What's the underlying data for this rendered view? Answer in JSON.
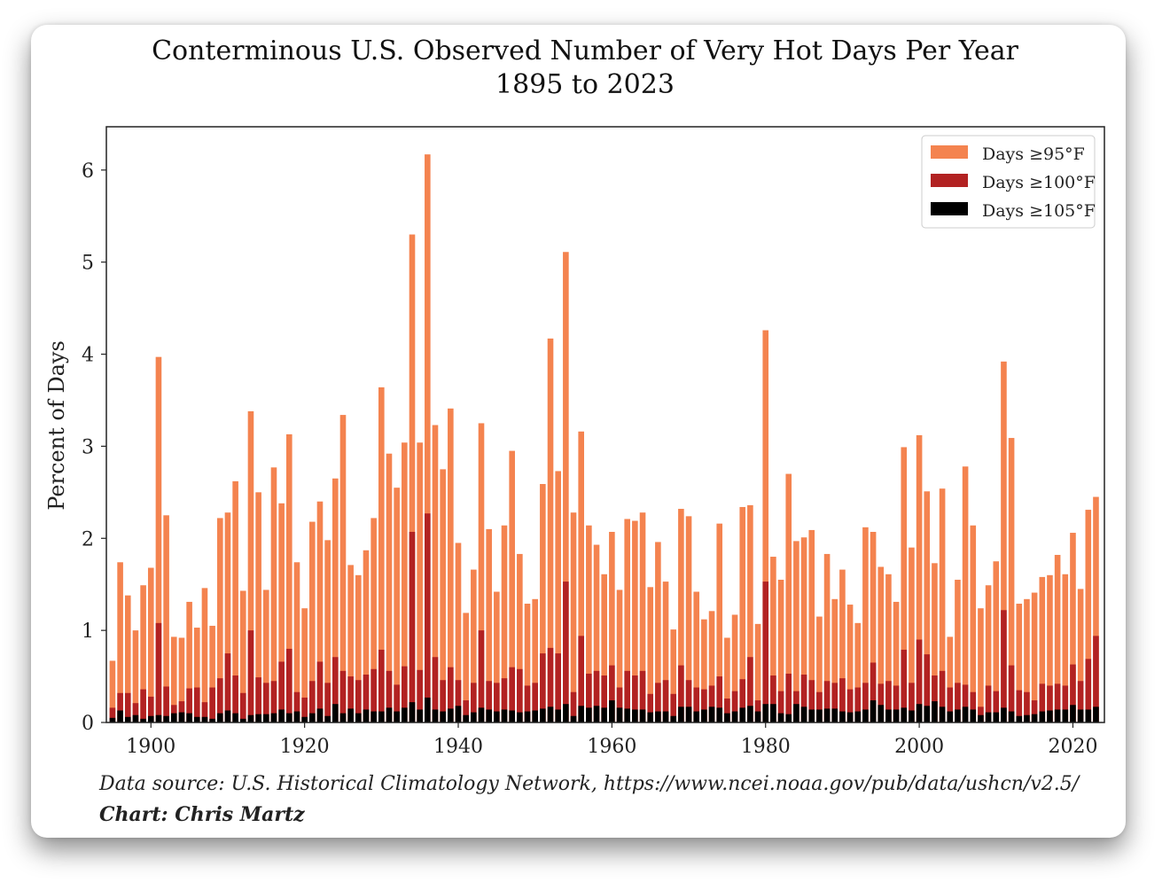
{
  "chart_data": {
    "type": "bar",
    "title": "Conterminous U.S. Observed Number of Very Hot Days Per Year",
    "subtitle": "1895 to 2023",
    "ylabel": "Percent of Days",
    "xlabel": "",
    "xlim": [
      1894.2,
      2024.1
    ],
    "ylim": [
      0,
      6.47
    ],
    "xticks": [
      1900,
      1920,
      1940,
      1960,
      1980,
      2000,
      2020
    ],
    "yticks": [
      0,
      1,
      2,
      3,
      4,
      5,
      6
    ],
    "grid": false,
    "legend_placement": "top-right",
    "x_start": 1895,
    "x_end": 2023,
    "series": [
      {
        "name": "Days ≥95°F",
        "color": "#f4834f",
        "values": [
          0.67,
          1.74,
          1.38,
          1.0,
          1.49,
          1.68,
          3.97,
          2.25,
          0.93,
          0.92,
          1.31,
          1.03,
          1.46,
          1.05,
          2.22,
          2.28,
          2.62,
          1.43,
          3.38,
          2.5,
          1.44,
          2.77,
          2.38,
          3.13,
          1.74,
          1.24,
          2.18,
          2.4,
          1.98,
          2.65,
          3.34,
          1.71,
          1.6,
          1.87,
          2.22,
          3.64,
          2.92,
          2.55,
          3.04,
          5.3,
          3.04,
          6.17,
          3.23,
          2.75,
          3.41,
          1.95,
          1.19,
          1.66,
          3.25,
          2.1,
          1.42,
          2.14,
          2.95,
          1.83,
          1.29,
          1.34,
          2.59,
          4.17,
          2.73,
          5.11,
          2.28,
          3.16,
          2.14,
          1.93,
          1.61,
          2.07,
          1.44,
          2.21,
          2.19,
          2.28,
          1.47,
          1.96,
          1.53,
          1.01,
          2.32,
          2.24,
          1.42,
          1.12,
          1.21,
          2.16,
          0.92,
          1.17,
          2.34,
          2.36,
          1.07,
          4.26,
          1.8,
          1.55,
          2.7,
          1.97,
          2.01,
          2.09,
          1.15,
          1.83,
          1.34,
          1.66,
          1.28,
          1.08,
          2.12,
          2.07,
          1.69,
          1.61,
          1.31,
          2.99,
          1.9,
          3.12,
          2.51,
          1.73,
          2.54,
          0.93,
          1.55,
          2.78,
          2.14,
          1.24,
          1.49,
          1.75,
          3.92,
          3.09,
          1.29,
          1.34,
          1.41,
          1.58,
          1.6,
          1.82,
          1.61,
          2.06,
          1.45,
          2.31,
          2.45
        ]
      },
      {
        "name": "Days ≥100°F",
        "color": "#b22222",
        "values": [
          0.16,
          0.32,
          0.32,
          0.21,
          0.36,
          0.28,
          1.08,
          0.39,
          0.19,
          0.23,
          0.37,
          0.38,
          0.22,
          0.38,
          0.48,
          0.75,
          0.51,
          0.32,
          1.0,
          0.49,
          0.43,
          0.45,
          0.66,
          0.8,
          0.33,
          0.27,
          0.45,
          0.66,
          0.43,
          0.71,
          0.56,
          0.5,
          0.46,
          0.52,
          0.58,
          0.79,
          0.56,
          0.41,
          0.61,
          2.07,
          0.57,
          2.27,
          0.71,
          0.46,
          0.6,
          0.46,
          0.24,
          0.43,
          1.0,
          0.45,
          0.43,
          0.48,
          0.6,
          0.58,
          0.4,
          0.43,
          0.75,
          0.81,
          0.75,
          1.53,
          0.33,
          0.94,
          0.53,
          0.56,
          0.51,
          0.62,
          0.38,
          0.56,
          0.51,
          0.56,
          0.31,
          0.43,
          0.46,
          0.31,
          0.62,
          0.46,
          0.38,
          0.36,
          0.4,
          0.5,
          0.26,
          0.34,
          0.47,
          0.71,
          0.24,
          1.53,
          0.51,
          0.34,
          0.53,
          0.34,
          0.52,
          0.46,
          0.33,
          0.45,
          0.43,
          0.48,
          0.36,
          0.38,
          0.43,
          0.65,
          0.42,
          0.45,
          0.4,
          0.79,
          0.43,
          0.9,
          0.74,
          0.51,
          0.56,
          0.38,
          0.43,
          0.41,
          0.33,
          0.17,
          0.4,
          0.34,
          1.22,
          0.62,
          0.35,
          0.33,
          0.24,
          0.42,
          0.4,
          0.42,
          0.4,
          0.63,
          0.45,
          0.69,
          0.94
        ]
      },
      {
        "name": "Days ≥105°F",
        "color": "#000000",
        "values": [
          0.05,
          0.13,
          0.06,
          0.08,
          0.04,
          0.07,
          0.08,
          0.07,
          0.1,
          0.11,
          0.1,
          0.06,
          0.06,
          0.04,
          0.1,
          0.13,
          0.1,
          0.04,
          0.08,
          0.09,
          0.09,
          0.1,
          0.14,
          0.1,
          0.12,
          0.06,
          0.1,
          0.15,
          0.07,
          0.2,
          0.1,
          0.15,
          0.1,
          0.14,
          0.12,
          0.12,
          0.16,
          0.12,
          0.16,
          0.22,
          0.14,
          0.27,
          0.14,
          0.12,
          0.15,
          0.18,
          0.08,
          0.11,
          0.16,
          0.14,
          0.12,
          0.14,
          0.13,
          0.11,
          0.12,
          0.13,
          0.15,
          0.17,
          0.14,
          0.2,
          0.07,
          0.18,
          0.16,
          0.18,
          0.16,
          0.24,
          0.16,
          0.15,
          0.14,
          0.14,
          0.11,
          0.12,
          0.12,
          0.07,
          0.17,
          0.17,
          0.12,
          0.14,
          0.17,
          0.16,
          0.1,
          0.12,
          0.16,
          0.18,
          0.12,
          0.2,
          0.2,
          0.1,
          0.09,
          0.2,
          0.17,
          0.14,
          0.14,
          0.15,
          0.15,
          0.12,
          0.11,
          0.12,
          0.14,
          0.24,
          0.19,
          0.14,
          0.14,
          0.16,
          0.13,
          0.2,
          0.18,
          0.23,
          0.17,
          0.12,
          0.14,
          0.17,
          0.14,
          0.08,
          0.11,
          0.11,
          0.16,
          0.12,
          0.07,
          0.08,
          0.09,
          0.12,
          0.13,
          0.14,
          0.14,
          0.19,
          0.14,
          0.14,
          0.17
        ]
      }
    ],
    "source": "Data source: U.S. Historical Climatology Network, https://www.ncei.noaa.gov/pub/data/ushcn/v2.5/",
    "credit": "Chart: Chris Martz"
  }
}
